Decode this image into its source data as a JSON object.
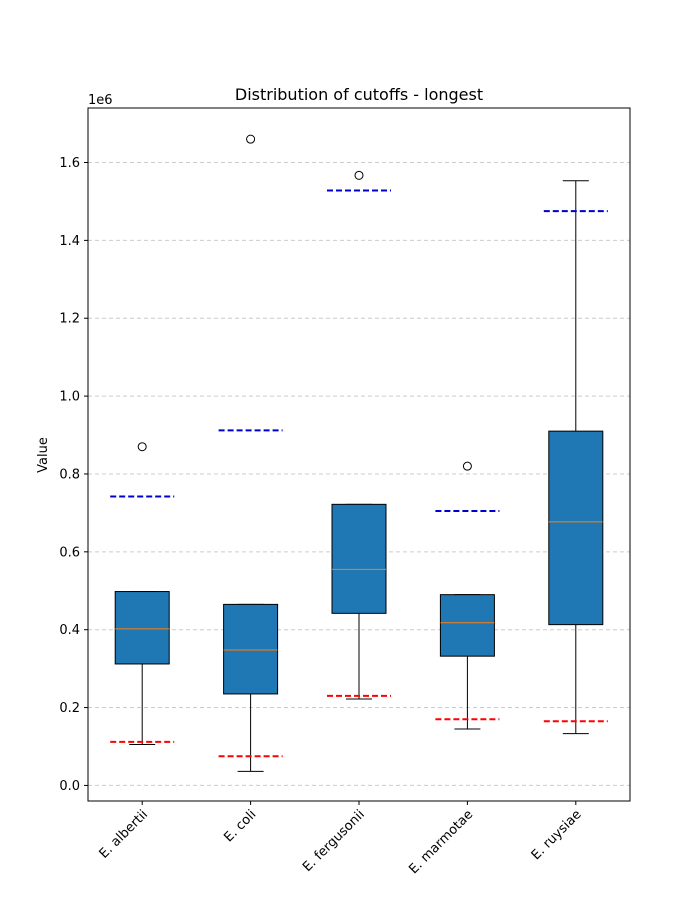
{
  "chart_data": {
    "type": "box",
    "title": "Distribution of cutoffs - longest",
    "xlabel": "",
    "ylabel": "Value",
    "y_offset_label": "1e6",
    "ylim": [
      -0.04,
      1.74
    ],
    "yticks": [
      0.0,
      0.2,
      0.4,
      0.6,
      0.8,
      1.0,
      1.2,
      1.4,
      1.6
    ],
    "ytick_labels": [
      "0.0",
      "0.2",
      "0.4",
      "0.6",
      "0.8",
      "1.0",
      "1.2",
      "1.4",
      "1.6"
    ],
    "grid_y": true,
    "categories": [
      "E. albertii",
      "E. coli",
      "E. fergusonii",
      "E. marmotae",
      "E. ruysiae"
    ],
    "boxes": [
      {
        "whisker_low": 0.105,
        "q1": 0.312,
        "median": 0.402,
        "q3": 0.498,
        "whisker_high": 0.498,
        "outliers": [
          0.87
        ],
        "upper_cutoff": 0.742,
        "lower_cutoff": 0.112
      },
      {
        "whisker_low": 0.036,
        "q1": 0.235,
        "median": 0.348,
        "q3": 0.465,
        "whisker_high": 0.465,
        "outliers": [
          1.66
        ],
        "upper_cutoff": 0.912,
        "lower_cutoff": 0.075
      },
      {
        "whisker_low": 0.222,
        "q1": 0.442,
        "median": 0.555,
        "q3": 0.722,
        "whisker_high": 0.722,
        "outliers": [
          1.567
        ],
        "upper_cutoff": 1.528,
        "lower_cutoff": 0.23
      },
      {
        "whisker_low": 0.145,
        "q1": 0.332,
        "median": 0.418,
        "q3": 0.49,
        "whisker_high": 0.49,
        "outliers": [
          0.82
        ],
        "upper_cutoff": 0.705,
        "lower_cutoff": 0.17
      },
      {
        "whisker_low": 0.133,
        "q1": 0.413,
        "median": 0.677,
        "q3": 0.91,
        "whisker_high": 1.553,
        "outliers": [],
        "upper_cutoff": 1.475,
        "lower_cutoff": 0.165
      }
    ],
    "colors": {
      "box_fill": "#1f77b4",
      "median": "#ff7f0e",
      "upper_cutoff": "#0000cc",
      "lower_cutoff": "#ff0000",
      "grid": "#cccccc"
    }
  }
}
